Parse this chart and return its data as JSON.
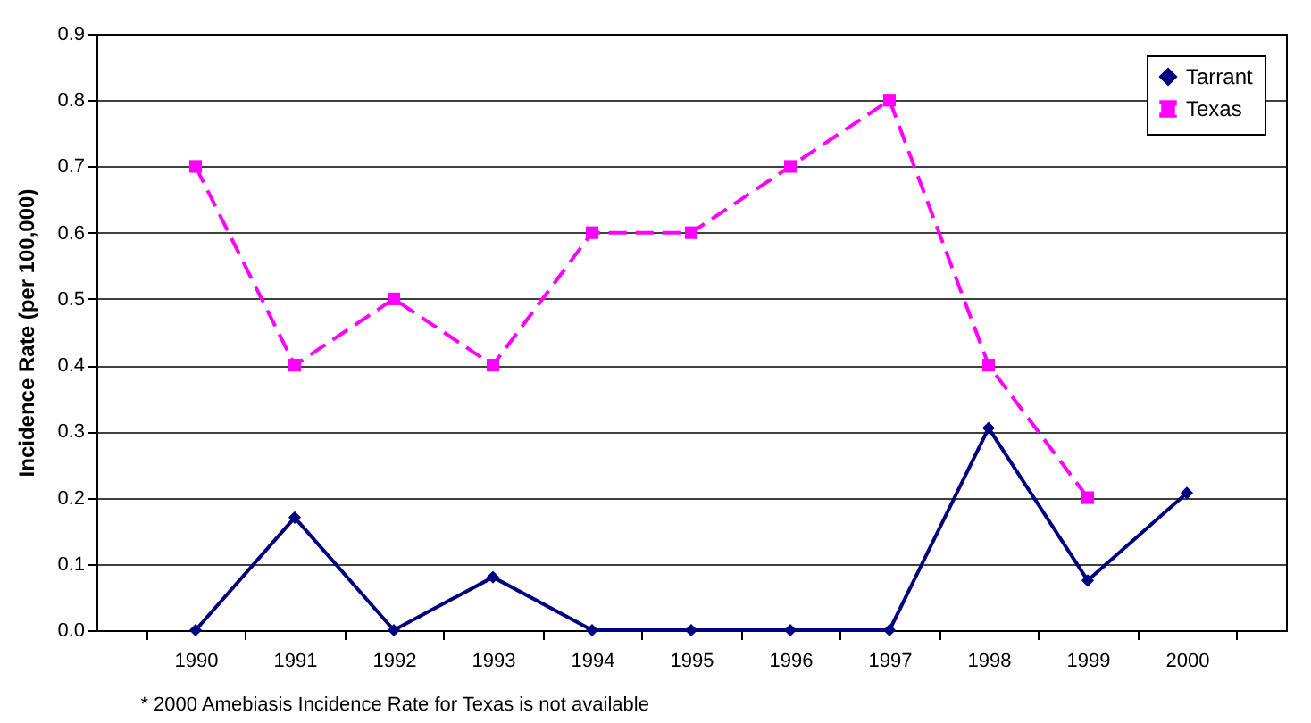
{
  "chart_data": {
    "type": "line",
    "ylabel": "Incidence Rate (per 100,000)",
    "categories": [
      "1990",
      "1991",
      "1992",
      "1993",
      "1994",
      "1995",
      "1996",
      "1997",
      "1998",
      "1999",
      "2000"
    ],
    "series": [
      {
        "name": "Tarrant",
        "color": "#000080",
        "marker": "diamond",
        "line_style": "solid",
        "values": [
          0,
          0.17,
          0,
          0.08,
          0,
          0,
          0,
          0,
          0.305,
          0.075,
          0.207
        ]
      },
      {
        "name": "Texas",
        "color": "#ff00ff",
        "marker": "square",
        "line_style": "dashed",
        "values": [
          0.7,
          0.4,
          0.5,
          0.4,
          0.6,
          0.6,
          0.7,
          0.8,
          0.4,
          0.2,
          null
        ]
      }
    ],
    "ylim": [
      0,
      0.9
    ],
    "yticks": [
      {
        "value": 0,
        "label": "0.0"
      },
      {
        "value": 0.1,
        "label": "0.1"
      },
      {
        "value": 0.2,
        "label": "0.2"
      },
      {
        "value": 0.3,
        "label": "0.3"
      },
      {
        "value": 0.4,
        "label": "0.4"
      },
      {
        "value": 0.5,
        "label": "0.5"
      },
      {
        "value": 0.6,
        "label": "0.6"
      },
      {
        "value": 0.7,
        "label": "0.7"
      },
      {
        "value": 0.8,
        "label": "0.8"
      },
      {
        "value": 0.9,
        "label": "0.9"
      }
    ],
    "grid": "y",
    "legend": "top right",
    "annotations": [
      "* 2000 Amebiasis Incidence Rate for Texas is not available"
    ]
  }
}
